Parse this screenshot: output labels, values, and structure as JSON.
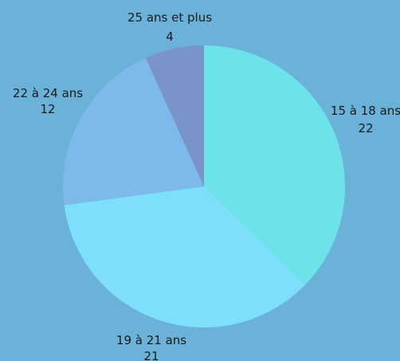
{
  "chart_data": {
    "type": "pie",
    "slices": [
      {
        "label": "15 à 18 ans",
        "value": 22,
        "display": "22",
        "color": "#6ce3e8"
      },
      {
        "label": "19 à 21 ans",
        "value": 21,
        "display": "21",
        "color": "#7ddff9"
      },
      {
        "label": "22 à 24 ans",
        "value": 12,
        "display": "12",
        "color": "#7db9ea"
      },
      {
        "label": "25 ans et plus",
        "value": 4,
        "display": "4",
        "color": "#7a93c8"
      }
    ]
  }
}
